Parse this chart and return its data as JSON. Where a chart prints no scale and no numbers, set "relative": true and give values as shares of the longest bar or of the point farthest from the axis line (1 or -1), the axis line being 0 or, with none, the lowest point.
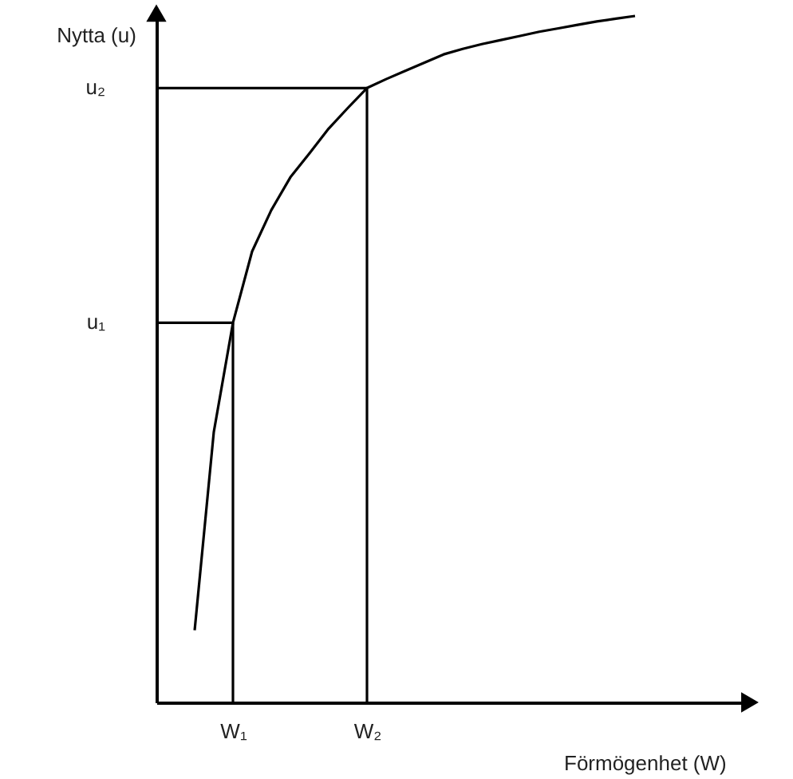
{
  "chart_data": {
    "type": "line",
    "xlabel": "Förmögenhet (W)",
    "ylabel": "Nytta (u)",
    "relative": true,
    "categories": [
      null,
      null,
      null,
      null,
      "W₁",
      null,
      null,
      null,
      null,
      null,
      null,
      "W₂",
      null,
      null,
      null,
      null,
      null,
      null,
      null,
      null,
      null,
      null,
      null,
      null,
      null,
      null,
      null,
      null,
      null,
      null,
      null,
      null
    ],
    "grid": false,
    "marker": "none",
    "line_style": "solid",
    "annotations": [
      "u₁",
      "u₂"
    ],
    "series": [
      {
        "color": "#000000",
        "values": [
          null,
          null,
          0.105,
          0.394,
          0.553,
          0.657,
          0.717,
          0.765,
          0.8,
          0.836,
          0.866,
          0.895,
          0.908,
          0.92,
          0.932,
          0.944,
          0.952,
          0.959,
          0.965,
          0.971,
          0.977,
          0.982,
          0.987,
          0.992,
          0.996,
          1,
          null,
          null,
          null,
          null,
          null,
          null
        ]
      },
      {
        "color": "#000000",
        "values": [
          0.553,
          0.553,
          0.553,
          0.553,
          0.553,
          null,
          null,
          null,
          null,
          null,
          null,
          null,
          null,
          null,
          null,
          null,
          null,
          null,
          null,
          null,
          null,
          null,
          null,
          null,
          null,
          null,
          null,
          null,
          null,
          null,
          null,
          null
        ]
      },
      {
        "color": "#000000",
        "values": [
          0.895,
          0.895,
          0.895,
          0.895,
          0.895,
          0.895,
          0.895,
          0.895,
          0.895,
          0.895,
          0.895,
          0.895,
          null,
          null,
          null,
          null,
          null,
          null,
          null,
          null,
          null,
          null,
          null,
          null,
          null,
          null,
          null,
          null,
          null,
          null,
          null,
          null
        ]
      },
      {
        "type": "bar",
        "color": "#000000",
        "values": [
          null,
          null,
          null,
          null,
          0.553,
          null,
          null,
          null,
          null,
          null,
          null,
          0.895,
          null,
          null,
          null,
          null,
          null,
          null,
          null,
          null,
          null,
          null,
          null,
          null,
          null,
          null,
          null,
          null,
          null,
          null,
          null,
          null
        ]
      }
    ]
  }
}
